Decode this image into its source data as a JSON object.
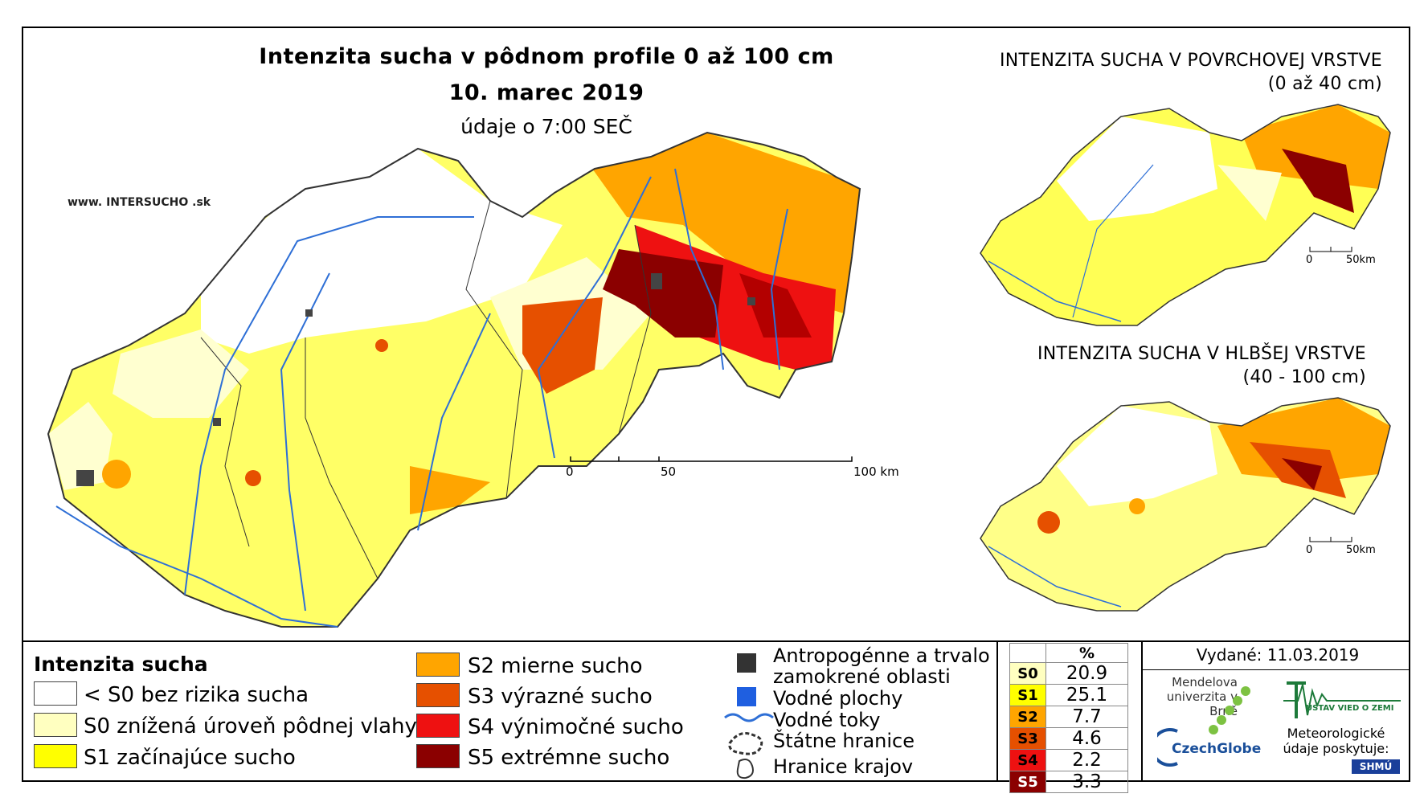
{
  "map": {
    "title": "Intenzita sucha v pôdnom profile 0 až 100 cm",
    "date": "10. marec 2019",
    "time_note": "údaje o 7:00 SEČ",
    "website": "www. INTERSUCHO .sk",
    "scale": {
      "zero": "0",
      "mid": "50",
      "end": "100 km"
    }
  },
  "inset_top": {
    "title_line1": "INTENZITA SUCHA V POVRCHOVEJ VRSTVE",
    "title_line2": "(0 až 40 cm)",
    "scale_zero": "0",
    "scale_end": "50km"
  },
  "inset_bottom": {
    "title_line1": "INTENZITA SUCHA V HLBŠEJ VRSTVE",
    "title_line2": "(40 - 100 cm)",
    "scale_zero": "0",
    "scale_end": "50km"
  },
  "legend": {
    "title": "Intenzita sucha",
    "classes": [
      {
        "label": "< S0 bez rizika sucha",
        "color": "#ffffff"
      },
      {
        "label": "S0 znížená úroveň pôdnej vlahy",
        "color": "#ffffc0"
      },
      {
        "label": "S1 začínajúce sucho",
        "color": "#ffff00"
      },
      {
        "label": "S2 mierne sucho",
        "color": "#ffa500"
      },
      {
        "label": "S3 výrazné sucho",
        "color": "#e65000"
      },
      {
        "label": "S4 výnimočné sucho",
        "color": "#ee1111"
      },
      {
        "label": "S5 extrémne sucho",
        "color": "#8b0000"
      }
    ],
    "features": [
      {
        "label1": "Antropogénne a trvalo",
        "label2": "zamokrené oblasti"
      },
      {
        "label1": "Vodné plochy"
      },
      {
        "label1": "Vodné toky"
      },
      {
        "label1": "Štátne hranice"
      },
      {
        "label1": "Hranice krajov"
      }
    ]
  },
  "percent_table": {
    "header": "%",
    "rows": [
      {
        "cls": "S0",
        "value": "20.9",
        "color": "#ffffc0"
      },
      {
        "cls": "S1",
        "value": "25.1",
        "color": "#ffff00"
      },
      {
        "cls": "S2",
        "value": "7.7",
        "color": "#ffa500"
      },
      {
        "cls": "S3",
        "value": "4.6",
        "color": "#e65000"
      },
      {
        "cls": "S4",
        "value": "2.2",
        "color": "#ee1111"
      },
      {
        "cls": "S5",
        "value": "3.3",
        "color": "#8b0000"
      }
    ]
  },
  "footer": {
    "issued": "Vydané: 11.03.2019",
    "mendel": "Mendelova univerzita v Brně",
    "czechglobe": "CzechGlobe",
    "ustav": "ÚSTAV VIED O ZEMI",
    "meteo": "Meteorologické údaje poskytuje:",
    "shmu": "SHMÚ"
  }
}
